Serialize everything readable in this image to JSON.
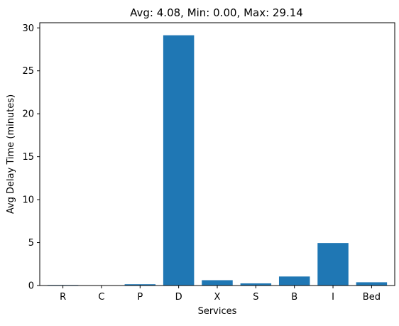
{
  "chart_data": {
    "type": "bar",
    "title": "Avg: 4.08, Min: 0.00, Max: 29.14",
    "xlabel": "Services",
    "ylabel": "Avg Delay Time (minutes)",
    "categories": [
      "R",
      "C",
      "P",
      "D",
      "X",
      "S",
      "B",
      "I",
      "Bed"
    ],
    "values": [
      0.06,
      0.0,
      0.15,
      29.14,
      0.62,
      0.25,
      1.05,
      4.95,
      0.38
    ],
    "ylim": [
      0,
      30.6
    ],
    "yticks": [
      0,
      5,
      10,
      15,
      20,
      25,
      30
    ],
    "grid": false,
    "bar_color": "#1f77b4"
  }
}
